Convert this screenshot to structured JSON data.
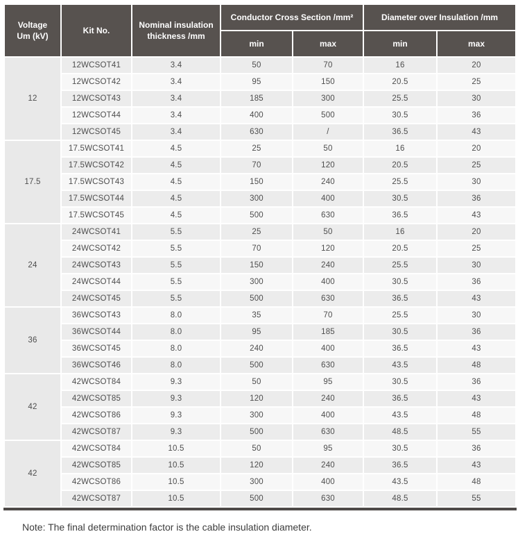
{
  "table": {
    "headers": {
      "voltage": "Voltage\nUm (kV)",
      "kit_no": "Kit No.",
      "nominal_insulation": "Nominal insulation\nthickness /mm",
      "conductor_cross_section": "Conductor Cross Section /mm²",
      "diameter_over_insulation": "Diameter over Insulation /mm",
      "min": "min",
      "max": "max"
    },
    "groups": [
      {
        "voltage": "12",
        "rows": [
          {
            "kit": "12WCSOT41",
            "thickness": "3.4",
            "ccs_min": "50",
            "ccs_max": "70",
            "dia_min": "16",
            "dia_max": "20"
          },
          {
            "kit": "12WCSOT42",
            "thickness": "3.4",
            "ccs_min": "95",
            "ccs_max": "150",
            "dia_min": "20.5",
            "dia_max": "25"
          },
          {
            "kit": "12WCSOT43",
            "thickness": "3.4",
            "ccs_min": "185",
            "ccs_max": "300",
            "dia_min": "25.5",
            "dia_max": "30"
          },
          {
            "kit": "12WCSOT44",
            "thickness": "3.4",
            "ccs_min": "400",
            "ccs_max": "500",
            "dia_min": "30.5",
            "dia_max": "36"
          },
          {
            "kit": "12WCSOT45",
            "thickness": "3.4",
            "ccs_min": "630",
            "ccs_max": "/",
            "dia_min": "36.5",
            "dia_max": "43"
          }
        ]
      },
      {
        "voltage": "17.5",
        "rows": [
          {
            "kit": "17.5WCSOT41",
            "thickness": "4.5",
            "ccs_min": "25",
            "ccs_max": "50",
            "dia_min": "16",
            "dia_max": "20"
          },
          {
            "kit": "17.5WCSOT42",
            "thickness": "4.5",
            "ccs_min": "70",
            "ccs_max": "120",
            "dia_min": "20.5",
            "dia_max": "25"
          },
          {
            "kit": "17.5WCSOT43",
            "thickness": "4.5",
            "ccs_min": "150",
            "ccs_max": "240",
            "dia_min": "25.5",
            "dia_max": "30"
          },
          {
            "kit": "17.5WCSOT44",
            "thickness": "4.5",
            "ccs_min": "300",
            "ccs_max": "400",
            "dia_min": "30.5",
            "dia_max": "36"
          },
          {
            "kit": "17.5WCSOT45",
            "thickness": "4.5",
            "ccs_min": "500",
            "ccs_max": "630",
            "dia_min": "36.5",
            "dia_max": "43"
          }
        ]
      },
      {
        "voltage": "24",
        "rows": [
          {
            "kit": "24WCSOT41",
            "thickness": "5.5",
            "ccs_min": "25",
            "ccs_max": "50",
            "dia_min": "16",
            "dia_max": "20"
          },
          {
            "kit": "24WCSOT42",
            "thickness": "5.5",
            "ccs_min": "70",
            "ccs_max": "120",
            "dia_min": "20.5",
            "dia_max": "25"
          },
          {
            "kit": "24WCSOT43",
            "thickness": "5.5",
            "ccs_min": "150",
            "ccs_max": "240",
            "dia_min": "25.5",
            "dia_max": "30"
          },
          {
            "kit": "24WCSOT44",
            "thickness": "5.5",
            "ccs_min": "300",
            "ccs_max": "400",
            "dia_min": "30.5",
            "dia_max": "36"
          },
          {
            "kit": "24WCSOT45",
            "thickness": "5.5",
            "ccs_min": "500",
            "ccs_max": "630",
            "dia_min": "36.5",
            "dia_max": "43"
          }
        ]
      },
      {
        "voltage": "36",
        "rows": [
          {
            "kit": "36WCSOT43",
            "thickness": "8.0",
            "ccs_min": "35",
            "ccs_max": "70",
            "dia_min": "25.5",
            "dia_max": "30"
          },
          {
            "kit": "36WCSOT44",
            "thickness": "8.0",
            "ccs_min": "95",
            "ccs_max": "185",
            "dia_min": "30.5",
            "dia_max": "36"
          },
          {
            "kit": "36WCSOT45",
            "thickness": "8.0",
            "ccs_min": "240",
            "ccs_max": "400",
            "dia_min": "36.5",
            "dia_max": "43"
          },
          {
            "kit": "36WCSOT46",
            "thickness": "8.0",
            "ccs_min": "500",
            "ccs_max": "630",
            "dia_min": "43.5",
            "dia_max": "48"
          }
        ]
      },
      {
        "voltage": "42",
        "rows": [
          {
            "kit": "42WCSOT84",
            "thickness": "9.3",
            "ccs_min": "50",
            "ccs_max": "95",
            "dia_min": "30.5",
            "dia_max": "36"
          },
          {
            "kit": "42WCSOT85",
            "thickness": "9.3",
            "ccs_min": "120",
            "ccs_max": "240",
            "dia_min": "36.5",
            "dia_max": "43"
          },
          {
            "kit": "42WCSOT86",
            "thickness": "9.3",
            "ccs_min": "300",
            "ccs_max": "400",
            "dia_min": "43.5",
            "dia_max": "48"
          },
          {
            "kit": "42WCSOT87",
            "thickness": "9.3",
            "ccs_min": "500",
            "ccs_max": "630",
            "dia_min": "48.5",
            "dia_max": "55"
          }
        ]
      },
      {
        "voltage": "42",
        "rows": [
          {
            "kit": "42WCSOT84",
            "thickness": "10.5",
            "ccs_min": "50",
            "ccs_max": "95",
            "dia_min": "30.5",
            "dia_max": "36"
          },
          {
            "kit": "42WCSOT85",
            "thickness": "10.5",
            "ccs_min": "120",
            "ccs_max": "240",
            "dia_min": "36.5",
            "dia_max": "43"
          },
          {
            "kit": "42WCSOT86",
            "thickness": "10.5",
            "ccs_min": "300",
            "ccs_max": "400",
            "dia_min": "43.5",
            "dia_max": "48"
          },
          {
            "kit": "42WCSOT87",
            "thickness": "10.5",
            "ccs_min": "500",
            "ccs_max": "630",
            "dia_min": "48.5",
            "dia_max": "55"
          }
        ]
      }
    ]
  },
  "note": "Note: The final determination factor is the cable insulation diameter.",
  "colors": {
    "header_bg": "#57524f",
    "header_text": "#ffffff",
    "row_odd_bg": "#ececec",
    "row_even_bg": "#f7f7f7",
    "group_cell_bg": "#e9e9e9",
    "body_text": "#4d4d4d",
    "bottom_rule": "#4e4a48",
    "note_text": "#3c3c3c"
  }
}
